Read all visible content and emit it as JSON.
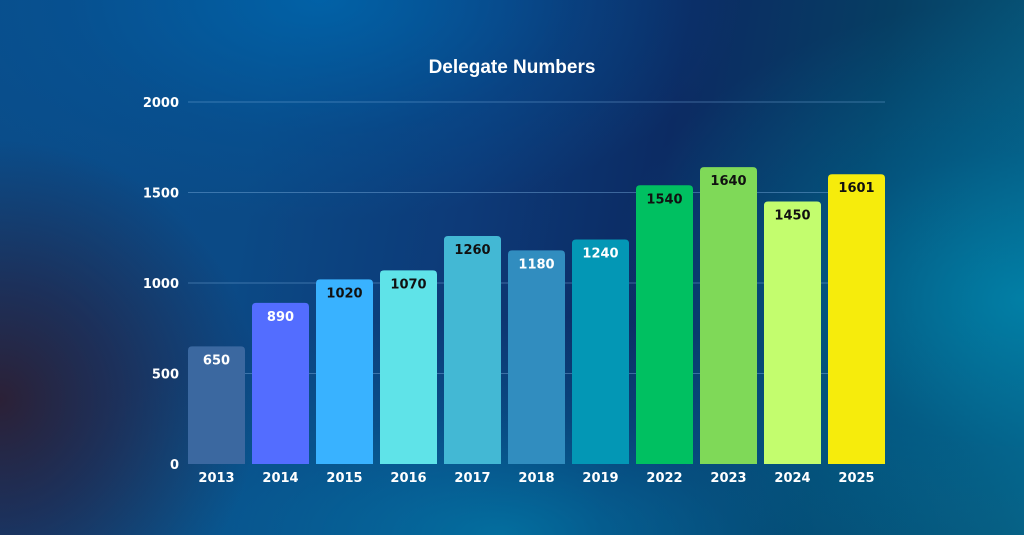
{
  "chart_data": {
    "type": "bar",
    "title": "Delegate Numbers",
    "xlabel": "",
    "ylabel": "",
    "ylim": [
      0,
      2000
    ],
    "yticks": [
      0,
      500,
      1000,
      1500,
      2000
    ],
    "ytick_labels": [
      "0",
      "500",
      "1000",
      "1500",
      "2000"
    ],
    "grid": true,
    "legend": "none",
    "categories": [
      "2013",
      "2014",
      "2015",
      "2016",
      "2017",
      "2018",
      "2019",
      "2022",
      "2023",
      "2024",
      "2025"
    ],
    "values": [
      650,
      890,
      1020,
      1070,
      1260,
      1180,
      1240,
      1540,
      1640,
      1450,
      1601
    ],
    "data_labels": [
      "650",
      "890",
      "1020",
      "1070",
      "1260",
      "1180",
      "1240",
      "1540",
      "1640",
      "1450",
      "1601"
    ],
    "bar_colors": [
      "#3b68a0",
      "#536dff",
      "#39b2ff",
      "#5fe3e8",
      "#43b8d4",
      "#318dbf",
      "#0397b5",
      "#00c061",
      "#7fd958",
      "#c3fd6e",
      "#f6ec0c"
    ],
    "label_colors": [
      "#ffffff",
      "#ffffff",
      "#111111",
      "#111111",
      "#111111",
      "#ffffff",
      "#ffffff",
      "#111111",
      "#111111",
      "#111111",
      "#111111"
    ]
  }
}
